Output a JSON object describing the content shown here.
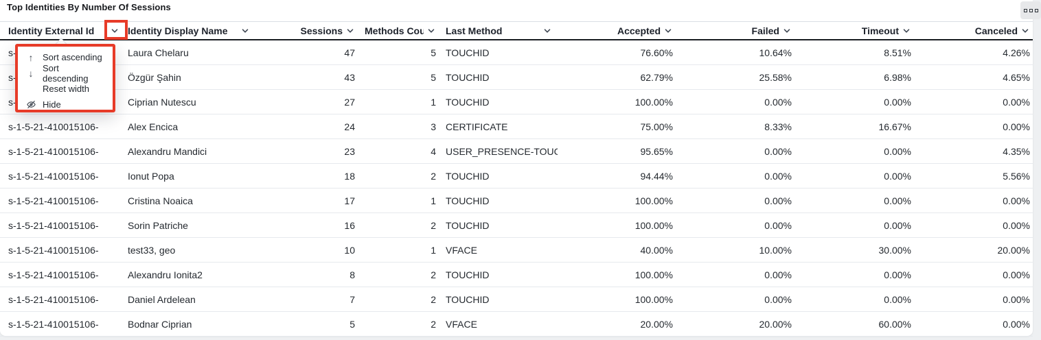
{
  "panel": {
    "title": "Top Identities By Number Of Sessions",
    "menu_button": {
      "icon": "panel-options-icon"
    }
  },
  "annotation": {
    "color": "#e73b28"
  },
  "table": {
    "columns": [
      {
        "key": "id",
        "label": "Identity External Id",
        "align": "left",
        "style": "spread"
      },
      {
        "key": "name",
        "label": "Identity Display Name",
        "align": "left",
        "style": "truncate pad-l4"
      },
      {
        "key": "sessions",
        "label": "Sessions",
        "align": "right",
        "style": ""
      },
      {
        "key": "methods",
        "label": "Methods Count",
        "align": "right",
        "style": "truncate pad-l10"
      },
      {
        "key": "last_method",
        "label": "Last Method",
        "align": "left",
        "style": "spread pad-l10"
      },
      {
        "key": "accepted",
        "label": "Accepted",
        "align": "right",
        "style": ""
      },
      {
        "key": "failed",
        "label": "Failed",
        "align": "right",
        "style": ""
      },
      {
        "key": "timeout",
        "label": "Timeout",
        "align": "right",
        "style": ""
      },
      {
        "key": "canceled",
        "label": "Canceled",
        "align": "right",
        "style": ""
      }
    ],
    "rows": [
      {
        "id": "s-1-5-21-410015106-",
        "name": "Laura Chelaru",
        "sessions": "47",
        "methods": "5",
        "last_method": "TOUCHID",
        "accepted": "76.60%",
        "failed": "10.64%",
        "timeout": "8.51%",
        "canceled": "4.26%"
      },
      {
        "id": "s-1-5-21-410015106-",
        "name": "Özgür Şahin",
        "sessions": "43",
        "methods": "5",
        "last_method": "TOUCHID",
        "accepted": "62.79%",
        "failed": "25.58%",
        "timeout": "6.98%",
        "canceled": "4.65%"
      },
      {
        "id": "s-1-5-21-410015106-",
        "name": "Ciprian Nutescu",
        "sessions": "27",
        "methods": "1",
        "last_method": "TOUCHID",
        "accepted": "100.00%",
        "failed": "0.00%",
        "timeout": "0.00%",
        "canceled": "0.00%"
      },
      {
        "id": "s-1-5-21-410015106-",
        "name": "Alex Encica",
        "sessions": "24",
        "methods": "3",
        "last_method": "CERTIFICATE",
        "accepted": "75.00%",
        "failed": "8.33%",
        "timeout": "16.67%",
        "canceled": "0.00%"
      },
      {
        "id": "s-1-5-21-410015106-",
        "name": "Alexandru Mandici",
        "sessions": "23",
        "methods": "4",
        "last_method": "USER_PRESENCE-TOUC",
        "accepted": "95.65%",
        "failed": "0.00%",
        "timeout": "0.00%",
        "canceled": "4.35%"
      },
      {
        "id": "s-1-5-21-410015106-",
        "name": "Ionut Popa",
        "sessions": "18",
        "methods": "2",
        "last_method": "TOUCHID",
        "accepted": "94.44%",
        "failed": "0.00%",
        "timeout": "0.00%",
        "canceled": "5.56%"
      },
      {
        "id": "s-1-5-21-410015106-",
        "name": "Cristina Noaica",
        "sessions": "17",
        "methods": "1",
        "last_method": "TOUCHID",
        "accepted": "100.00%",
        "failed": "0.00%",
        "timeout": "0.00%",
        "canceled": "0.00%"
      },
      {
        "id": "s-1-5-21-410015106-",
        "name": "Sorin Patriche",
        "sessions": "16",
        "methods": "2",
        "last_method": "TOUCHID",
        "accepted": "100.00%",
        "failed": "0.00%",
        "timeout": "0.00%",
        "canceled": "0.00%"
      },
      {
        "id": "s-1-5-21-410015106-",
        "name": "test33, geo",
        "sessions": "10",
        "methods": "1",
        "last_method": "VFACE",
        "accepted": "40.00%",
        "failed": "10.00%",
        "timeout": "30.00%",
        "canceled": "20.00%"
      },
      {
        "id": "s-1-5-21-410015106-",
        "name": "Alexandru Ionita2",
        "sessions": "8",
        "methods": "2",
        "last_method": "TOUCHID",
        "accepted": "100.00%",
        "failed": "0.00%",
        "timeout": "0.00%",
        "canceled": "0.00%"
      },
      {
        "id": "s-1-5-21-410015106-",
        "name": "Daniel Ardelean",
        "sessions": "7",
        "methods": "2",
        "last_method": "TOUCHID",
        "accepted": "100.00%",
        "failed": "0.00%",
        "timeout": "0.00%",
        "canceled": "0.00%"
      },
      {
        "id": "s-1-5-21-410015106-",
        "name": "Bodnar Ciprian",
        "sessions": "5",
        "methods": "2",
        "last_method": "VFACE",
        "accepted": "20.00%",
        "failed": "20.00%",
        "timeout": "60.00%",
        "canceled": "0.00%"
      }
    ]
  },
  "column_menu": {
    "items": [
      {
        "icon": "arrow-up",
        "label": "Sort ascending"
      },
      {
        "icon": "arrow-down",
        "label": "Sort descending"
      },
      {
        "icon": "none",
        "label": "Reset width"
      },
      {
        "icon": "eye-off",
        "label": "Hide"
      }
    ]
  }
}
